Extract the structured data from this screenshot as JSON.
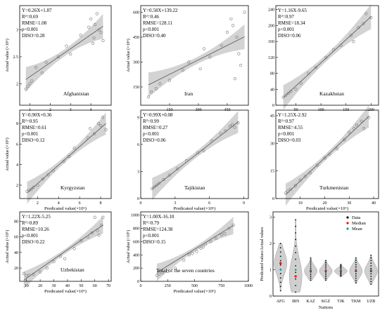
{
  "panels": [
    {
      "id": "afg",
      "country": "Afghanistan",
      "stats": [
        "Y=0.26X+1.87",
        "R²=0.69",
        "RMSE=1.08",
        "p<0.001",
        "DISO=0.28"
      ],
      "xlabel": "",
      "ylabel": "Actual value (×10⁶)",
      "xlim": [
        0.5,
        5
      ],
      "ylim": [
        1.6,
        3.45
      ],
      "xticks": [
        1,
        2,
        3,
        4
      ],
      "yticks": [
        2.0,
        2.5,
        3.0
      ],
      "fit": {
        "slope": 0.26,
        "intercept": 1.87
      },
      "points": [
        [
          0.8,
          1.9
        ],
        [
          0.9,
          1.95
        ],
        [
          1.0,
          2.0
        ],
        [
          1.1,
          2.05
        ],
        [
          1.3,
          2.3
        ],
        [
          1.6,
          2.2
        ],
        [
          1.8,
          2.4
        ],
        [
          2.4,
          2.5
        ],
        [
          2.8,
          2.7
        ],
        [
          3.0,
          2.55
        ],
        [
          3.5,
          2.9
        ],
        [
          3.9,
          3.05
        ],
        [
          4.0,
          3.2
        ],
        [
          4.1,
          2.75
        ],
        [
          4.15,
          2.85
        ],
        [
          4.2,
          3.1
        ],
        [
          4.3,
          3.3
        ],
        [
          4.4,
          3.0
        ],
        [
          4.5,
          2.95
        ],
        [
          4.6,
          2.8
        ]
      ]
    },
    {
      "id": "irn",
      "country": "Iran",
      "stats": [
        "Y=0.58X+139.22",
        "R²=0.46",
        "RMSE=128.11",
        "p<0.001",
        "DISO=0.40"
      ],
      "xlabel": "",
      "ylabel": "Actual value (×10⁶)",
      "xlim": [
        0,
        560
      ],
      "ylim": [
        40,
        640
      ],
      "xticks": [
        150,
        300,
        450
      ],
      "yticks": [
        150,
        300,
        450,
        600
      ],
      "fit": {
        "slope": 0.58,
        "intercept": 139.22
      },
      "points": [
        [
          40,
          90
        ],
        [
          55,
          120
        ],
        [
          80,
          140
        ],
        [
          100,
          170
        ],
        [
          150,
          190
        ],
        [
          220,
          250
        ],
        [
          250,
          300
        ],
        [
          310,
          260
        ],
        [
          330,
          380
        ],
        [
          360,
          330
        ],
        [
          420,
          400
        ],
        [
          450,
          480
        ],
        [
          470,
          560
        ],
        [
          480,
          520
        ],
        [
          490,
          200
        ],
        [
          500,
          450
        ],
        [
          510,
          350
        ],
        [
          520,
          280
        ],
        [
          540,
          600
        ]
      ]
    },
    {
      "id": "kaz",
      "country": "Kazakhstan",
      "stats": [
        "Y=1.16X-9.65",
        "R²=0.97",
        "RMSE=18.34",
        "p<0.001",
        "DISO=0.06"
      ],
      "xlabel": "",
      "ylabel": "",
      "xlim": [
        10,
        215
      ],
      "ylim": [
        0,
        250
      ],
      "xticks": [
        50,
        100,
        150,
        200
      ],
      "yticks": [
        0,
        40,
        80,
        120,
        160,
        200,
        240
      ],
      "fit": {
        "slope": 1.16,
        "intercept": -9.65
      },
      "points": [
        [
          25,
          20
        ],
        [
          30,
          25
        ],
        [
          35,
          30
        ],
        [
          40,
          35
        ],
        [
          50,
          40
        ],
        [
          60,
          55
        ],
        [
          75,
          80
        ],
        [
          90,
          95
        ],
        [
          110,
          120
        ],
        [
          125,
          140
        ],
        [
          140,
          150
        ],
        [
          160,
          175
        ],
        [
          165,
          160
        ],
        [
          175,
          195
        ],
        [
          185,
          205
        ],
        [
          190,
          230
        ],
        [
          200,
          220
        ]
      ]
    },
    {
      "id": "kgz",
      "country": "Kyrgyzstan",
      "stats": [
        "Y=0.90X+0.36",
        "R²=0.95",
        "RMSE=0.61",
        "p<0.001",
        "DISO=0.12"
      ],
      "xlabel": "Predicated value(×10⁶)",
      "ylabel": "Actual value (×10⁶)",
      "xlim": [
        0.3,
        9
      ],
      "ylim": [
        0.7,
        9.3
      ],
      "xticks": [
        2,
        4,
        6,
        8
      ],
      "yticks": [
        2,
        4,
        6,
        8
      ],
      "fit": {
        "slope": 0.9,
        "intercept": 0.36
      },
      "points": [
        [
          1.0,
          1.4
        ],
        [
          1.2,
          1.5
        ],
        [
          1.4,
          1.6
        ],
        [
          1.6,
          1.8
        ],
        [
          2.0,
          2.0
        ],
        [
          2.5,
          2.6
        ],
        [
          3.0,
          3.0
        ],
        [
          3.5,
          3.4
        ],
        [
          4.5,
          4.3
        ],
        [
          5.0,
          4.8
        ],
        [
          5.5,
          5.6
        ],
        [
          6.8,
          6.6
        ],
        [
          7.0,
          7.5
        ],
        [
          7.4,
          7.0
        ],
        [
          7.8,
          8.0
        ],
        [
          8.0,
          7.8
        ],
        [
          8.2,
          8.6
        ],
        [
          8.5,
          7.4
        ]
      ]
    },
    {
      "id": "tjk",
      "country": "Tajikistan",
      "stats": [
        "Y=0.99X+0.08",
        "R²=0.99",
        "RMSE=0.27",
        "p<0.001",
        "DISO=0.06"
      ],
      "xlabel": "Predicated value(×10⁶)",
      "ylabel": "",
      "xlim": [
        0,
        9.4
      ],
      "ylim": [
        0,
        9.8
      ],
      "xticks": [
        0,
        3,
        6,
        9
      ],
      "yticks": [
        0,
        3,
        6,
        9
      ],
      "fit": {
        "slope": 0.99,
        "intercept": 0.08
      },
      "points": [
        [
          1.0,
          1.1
        ],
        [
          1.2,
          1.3
        ],
        [
          1.4,
          1.5
        ],
        [
          1.6,
          1.7
        ],
        [
          2.0,
          2.1
        ],
        [
          2.5,
          2.6
        ],
        [
          3.2,
          3.3
        ],
        [
          4.0,
          4.2
        ],
        [
          5.0,
          5.1
        ],
        [
          5.5,
          5.3
        ],
        [
          6.2,
          6.4
        ],
        [
          7.0,
          7.2
        ],
        [
          7.4,
          7.5
        ],
        [
          7.8,
          8.0
        ],
        [
          8.0,
          8.2
        ],
        [
          8.2,
          7.9
        ],
        [
          8.5,
          8.4
        ]
      ]
    },
    {
      "id": "tkm",
      "country": "Turkmenistan",
      "stats": [
        "Y=1.25X-2.92",
        "R²=0.97",
        "RMSE=4.55",
        "p<0.001",
        "DISO=0.03"
      ],
      "xlabel": "Predicated value(×10⁶)",
      "ylabel": "",
      "xlim": [
        0,
        42
      ],
      "ylim": [
        0,
        48
      ],
      "xticks": [
        10,
        20,
        30,
        40
      ],
      "yticks": [
        0,
        15,
        30,
        45
      ],
      "fit": {
        "slope": 1.25,
        "intercept": -2.92
      },
      "points": [
        [
          4,
          3
        ],
        [
          5,
          4
        ],
        [
          6,
          5
        ],
        [
          8,
          7
        ],
        [
          10,
          10
        ],
        [
          12,
          12
        ],
        [
          14,
          14
        ],
        [
          17,
          18
        ],
        [
          20,
          22
        ],
        [
          22,
          24
        ],
        [
          25,
          27
        ],
        [
          28,
          32
        ],
        [
          30,
          36
        ],
        [
          32,
          38
        ],
        [
          33,
          40
        ],
        [
          35,
          42
        ],
        [
          36,
          38
        ],
        [
          38,
          44
        ]
      ]
    },
    {
      "id": "uzb",
      "country": "Uzbekistan",
      "stats": [
        "Y=1.22X-5.25",
        "R²=0.89",
        "RMSE=10.26",
        "p<0.001",
        "DISO=0.22"
      ],
      "xlabel": "Predicated value(×10⁶)",
      "ylabel": "Actual value (×10⁶)",
      "xlim": [
        5,
        72
      ],
      "ylim": [
        3,
        92
      ],
      "xticks": [
        10,
        20,
        30,
        40,
        50,
        60,
        70
      ],
      "yticks": [
        20,
        40,
        60,
        80
      ],
      "fit": {
        "slope": 1.22,
        "intercept": -5.25
      },
      "points": [
        [
          8,
          13
        ],
        [
          10,
          10
        ],
        [
          12,
          11
        ],
        [
          15,
          12
        ],
        [
          20,
          15
        ],
        [
          25,
          20
        ],
        [
          30,
          28
        ],
        [
          35,
          35
        ],
        [
          38,
          32
        ],
        [
          45,
          45
        ],
        [
          50,
          55
        ],
        [
          55,
          60
        ],
        [
          58,
          65
        ],
        [
          60,
          85
        ],
        [
          62,
          68
        ],
        [
          63,
          62
        ],
        [
          65,
          75
        ],
        [
          66,
          85
        ]
      ]
    },
    {
      "id": "all",
      "country": "Total of the seven countries",
      "stats": [
        "Y=1.00X-16.10",
        "R²=0.79",
        "RMSE=124.38",
        "p<0.001",
        "DISO=0.15"
      ],
      "xlabel": "Predicated value(×10⁶)",
      "ylabel": "Actual value (×10⁶)",
      "xlim": [
        0,
        1000
      ],
      "ylim": [
        0,
        1050
      ],
      "xticks": [
        0,
        250,
        500,
        750,
        1000
      ],
      "yticks": [
        0,
        200,
        400,
        600,
        800,
        1000
      ],
      "fit": {
        "slope": 1.0,
        "intercept": -16.1
      },
      "points": [
        [
          150,
          90
        ],
        [
          170,
          110
        ],
        [
          200,
          130
        ],
        [
          250,
          150
        ],
        [
          320,
          200
        ],
        [
          400,
          320
        ],
        [
          450,
          400
        ],
        [
          480,
          420
        ],
        [
          520,
          450
        ],
        [
          560,
          500
        ],
        [
          580,
          520
        ],
        [
          600,
          560
        ],
        [
          650,
          600
        ],
        [
          700,
          650
        ],
        [
          750,
          700
        ],
        [
          780,
          720
        ],
        [
          820,
          800
        ],
        [
          860,
          850
        ]
      ]
    }
  ],
  "violin": {
    "xlabel": "Nations",
    "ylabel": "Predicated values/Actual values",
    "ylim": [
      0,
      3.2
    ],
    "yticks": [
      0,
      1,
      2,
      3
    ],
    "categories": [
      "AFG",
      "IRN",
      "KAZ",
      "KGZ",
      "TJK",
      "TKM",
      "UZB"
    ],
    "medians": [
      1.25,
      0.75,
      0.95,
      0.95,
      0.95,
      0.95,
      0.95
    ],
    "means": [
      1.0,
      1.0,
      1.0,
      1.0,
      1.0,
      1.0,
      1.0
    ],
    "ranges": [
      [
        0.2,
        2.0
      ],
      [
        0.15,
        2.9
      ],
      [
        0.6,
        1.45
      ],
      [
        0.6,
        1.35
      ],
      [
        0.75,
        1.2
      ],
      [
        0.5,
        1.45
      ],
      [
        0.45,
        1.55
      ]
    ],
    "legend": [
      "Data",
      "Median",
      "Mean"
    ],
    "colors": {
      "data": "#000000",
      "median": "#ff0000",
      "mean": "#00a0a0",
      "violin": "#cfcfcf"
    }
  },
  "colors": {
    "points": "#777777",
    "band": "#c4c4c4",
    "line": "#555555"
  }
}
